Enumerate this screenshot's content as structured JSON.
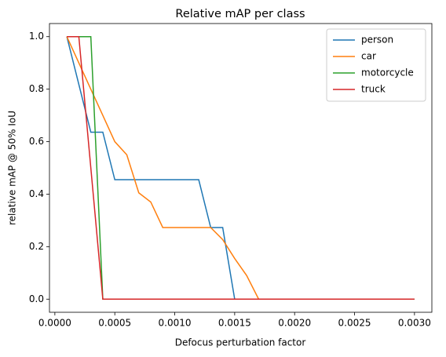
{
  "chart_data": {
    "type": "line",
    "title": "Relative mAP per class",
    "x_label": "Defocus perturbation factor",
    "y_label": "relative mAP @ 50% IoU",
    "xlim": [
      -4.5e-05,
      0.003145
    ],
    "ylim": [
      -0.05,
      1.05
    ],
    "xticks": [
      {
        "value": 0,
        "label": "0.0000"
      },
      0.0005,
      {
        "value": 0.001,
        "label": "0.0010"
      },
      0.0015,
      {
        "value": 0.002,
        "label": "0.0020"
      },
      0.0025,
      {
        "value": 0.003,
        "label": "0.0030"
      }
    ],
    "yticks": [
      {
        "value": 0,
        "label": "0.0"
      },
      0.2,
      0.4,
      0.6,
      0.8,
      {
        "value": 1,
        "label": "1.0"
      }
    ],
    "grid": false,
    "legend_position": "upper-right",
    "series": [
      {
        "name": "person",
        "color": "#1f77b4",
        "x": [
          0.0001,
          0.0003,
          0.0004,
          0.0005,
          0.0012,
          0.0013,
          0.0014,
          0.0015,
          0.003
        ],
        "values": [
          1.0,
          0.636,
          0.636,
          0.455,
          0.455,
          0.273,
          0.273,
          0,
          0
        ]
      },
      {
        "name": "car",
        "color": "#ff7f0e",
        "x": [
          0.0001,
          0.0002,
          0.0003,
          0.0004,
          0.0005,
          0.0006,
          0.0007,
          0.0008,
          0.0009,
          0.0013,
          0.0014,
          0.0015,
          0.0016,
          0.0017,
          0.003
        ],
        "values": [
          1.0,
          0.9,
          0.8,
          0.7,
          0.6,
          0.55,
          0.405,
          0.37,
          0.273,
          0.273,
          0.227,
          0.155,
          0.09,
          0,
          0
        ]
      },
      {
        "name": "motorcycle",
        "color": "#2ca02c",
        "x": [
          0.0001,
          0.0003,
          0.0004,
          0.003
        ],
        "values": [
          1.0,
          1.0,
          0,
          0
        ]
      },
      {
        "name": "truck",
        "color": "#d62728",
        "x": [
          0.0001,
          0.0002,
          0.0004,
          0.003
        ],
        "values": [
          1.0,
          1.0,
          0,
          0
        ]
      }
    ]
  }
}
